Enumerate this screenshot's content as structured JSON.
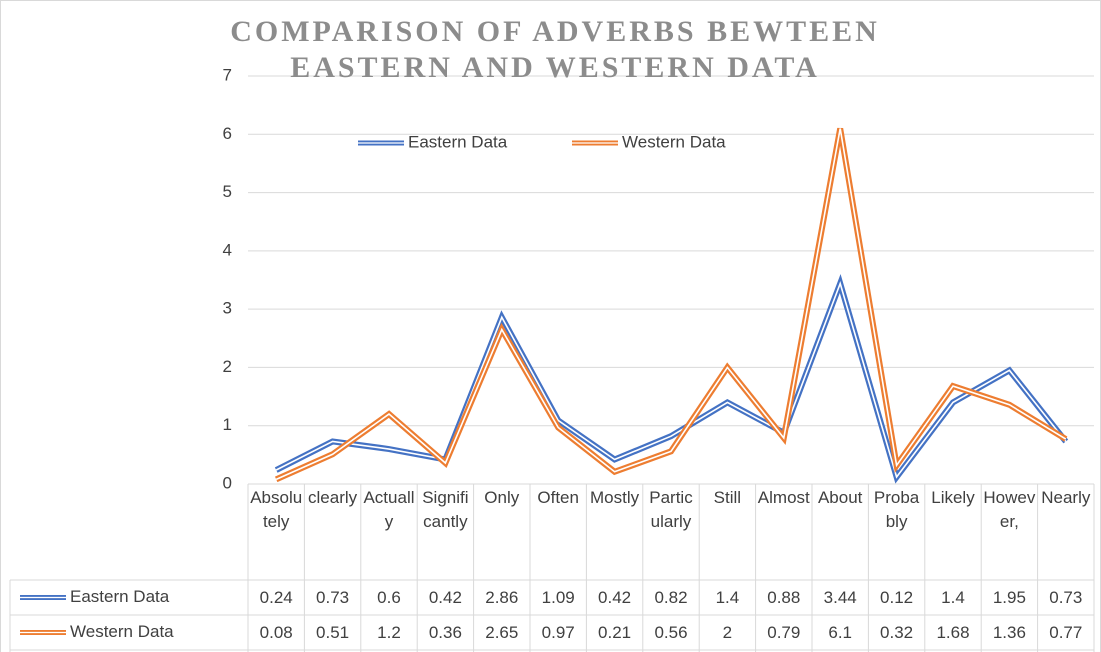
{
  "chart_data": {
    "type": "line",
    "title": "COMPARISON OF ADVERBS BEWTEEN EASTERN AND WESTERN DATA",
    "categories": [
      "Absolutely",
      "clearly",
      "Actually",
      "Significantly",
      "Only",
      "Often",
      "Mostly",
      "Particularly",
      "Still",
      "Almost",
      "About",
      "Probably",
      "Likely",
      "However,",
      "Nearly"
    ],
    "series": [
      {
        "name": "Eastern Data",
        "color": "#4472c4",
        "values": [
          0.24,
          0.73,
          0.6,
          0.42,
          2.86,
          1.09,
          0.42,
          0.82,
          1.4,
          0.88,
          3.44,
          0.12,
          1.4,
          1.95,
          0.73
        ]
      },
      {
        "name": "Western Data",
        "color": "#ed7d31",
        "values": [
          0.08,
          0.51,
          1.2,
          0.36,
          2.65,
          0.97,
          0.21,
          0.56,
          2,
          0.79,
          6.1,
          0.32,
          1.68,
          1.36,
          0.77
        ]
      }
    ],
    "ylim": [
      0,
      7
    ],
    "yticks": [
      0,
      1,
      2,
      3,
      4,
      5,
      6,
      7
    ],
    "grid": true,
    "legend": "top",
    "data_table": true
  }
}
